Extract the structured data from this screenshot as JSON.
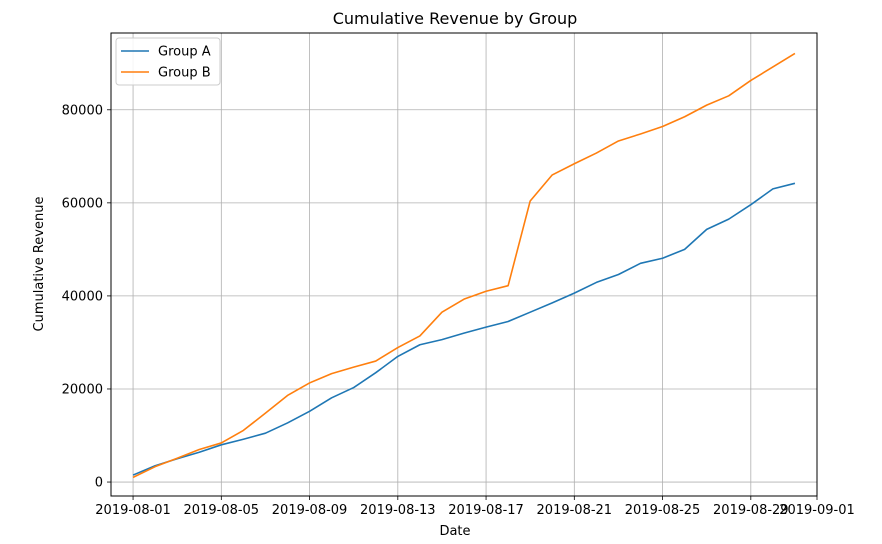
{
  "chart_data": {
    "type": "line",
    "title": "Cumulative Revenue by Group",
    "xlabel": "Date",
    "ylabel": "Cumulative Revenue",
    "xlim": [
      "2019-07-31",
      "2019-09-01"
    ],
    "ylim": [
      -3000,
      96500
    ],
    "grid": true,
    "legend_position": "top-left",
    "x_ticks": [
      "2019-08-01",
      "2019-08-05",
      "2019-08-09",
      "2019-08-13",
      "2019-08-17",
      "2019-08-21",
      "2019-08-25",
      "2019-08-29",
      "2019-09-01"
    ],
    "y_ticks": [
      0,
      20000,
      40000,
      60000,
      80000
    ],
    "x": [
      "2019-08-01",
      "2019-08-02",
      "2019-08-03",
      "2019-08-04",
      "2019-08-05",
      "2019-08-06",
      "2019-08-07",
      "2019-08-08",
      "2019-08-09",
      "2019-08-10",
      "2019-08-11",
      "2019-08-12",
      "2019-08-13",
      "2019-08-14",
      "2019-08-15",
      "2019-08-16",
      "2019-08-17",
      "2019-08-18",
      "2019-08-19",
      "2019-08-20",
      "2019-08-21",
      "2019-08-22",
      "2019-08-23",
      "2019-08-24",
      "2019-08-25",
      "2019-08-26",
      "2019-08-27",
      "2019-08-28",
      "2019-08-29",
      "2019-08-30",
      "2019-08-31"
    ],
    "series": [
      {
        "name": "Group A",
        "color": "#1f77b4",
        "values": [
          1500,
          3500,
          5000,
          6400,
          8000,
          9200,
          10500,
          12700,
          15200,
          18100,
          20300,
          23500,
          27000,
          29500,
          30600,
          32000,
          33300,
          34500,
          36500,
          38500,
          40600,
          42900,
          44600,
          47000,
          48100,
          50000,
          54300,
          56500,
          59600,
          63000,
          64200
        ]
      },
      {
        "name": "Group B",
        "color": "#ff7f0e",
        "values": [
          1000,
          3300,
          5100,
          7000,
          8400,
          11100,
          14800,
          18600,
          21300,
          23300,
          24700,
          26000,
          28900,
          31400,
          36500,
          39300,
          41000,
          42200,
          60400,
          66000,
          68400,
          70700,
          73300,
          74800,
          76400,
          78500,
          81000,
          83000,
          86300,
          89200,
          92100
        ]
      }
    ]
  }
}
